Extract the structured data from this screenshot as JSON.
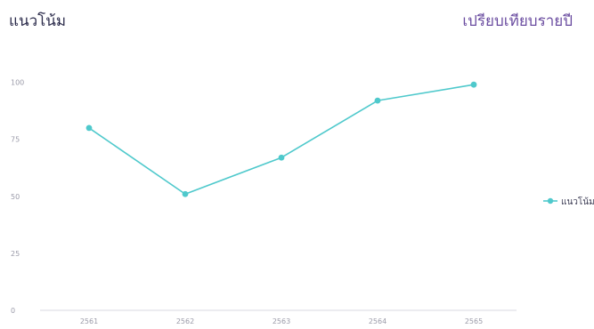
{
  "header": {
    "title": "แนวโน้ม",
    "subtitle": "เปรียบเทียบรายปี"
  },
  "chart_data": {
    "type": "line",
    "title": "แนวโน้ม",
    "subtitle": "เปรียบเทียบรายปี",
    "categories": [
      "2561",
      "2562",
      "2563",
      "2564",
      "2565"
    ],
    "series": [
      {
        "name": "แนวโน้ม",
        "values": [
          80,
          51,
          67,
          92,
          99
        ],
        "color": "#4fc9cc"
      }
    ],
    "yticks": [
      0,
      25,
      50,
      75,
      100
    ],
    "ylim": [
      0,
      110
    ],
    "xlabel": "",
    "ylabel": "",
    "grid": false,
    "legend_position": "right",
    "colors": {
      "series": "#4fc9cc",
      "axis": "#d8d8e0",
      "tick_text": "#9a9aa8"
    }
  }
}
